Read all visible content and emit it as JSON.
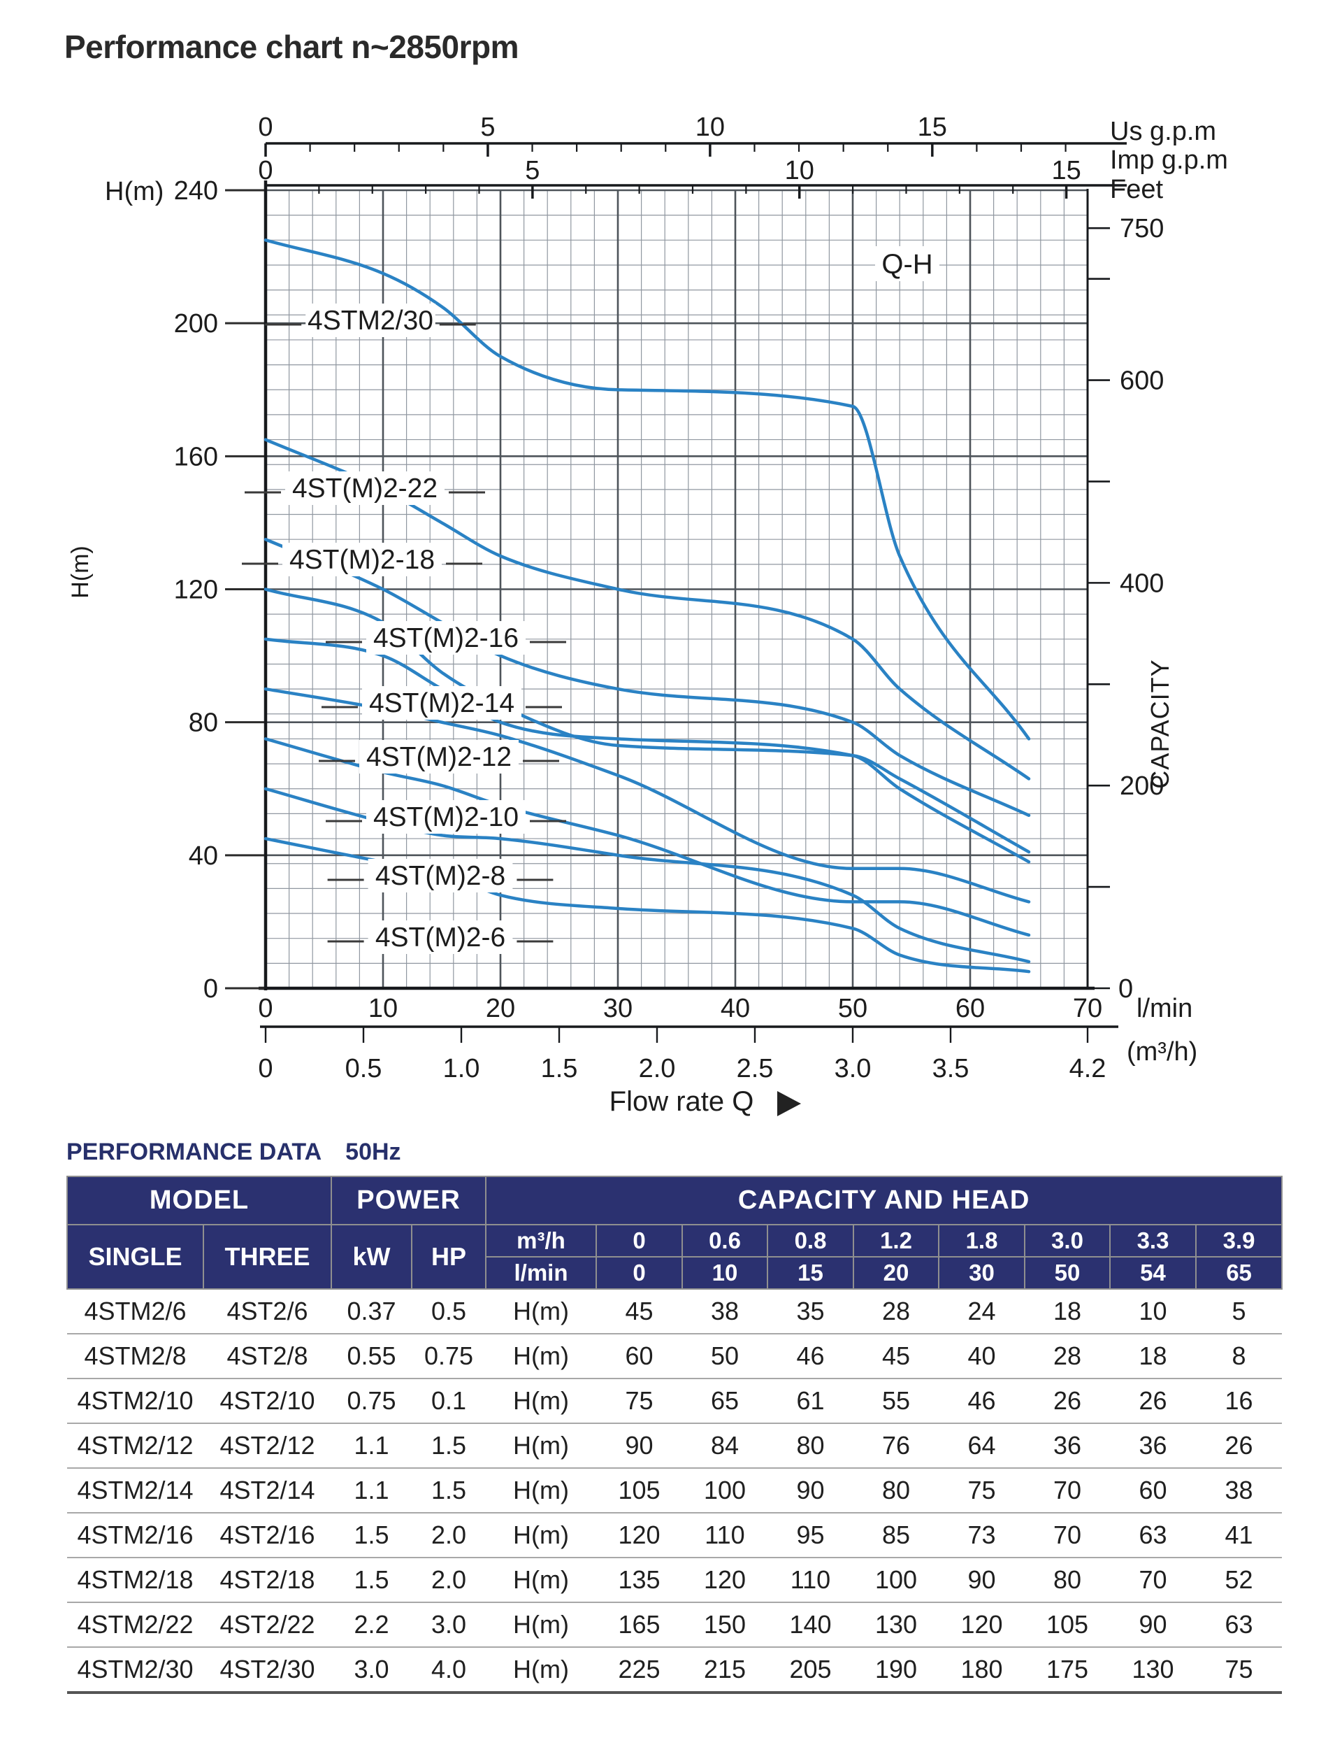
{
  "title": "Performance chart n~2850rpm",
  "chart_data": {
    "type": "line",
    "title": "Q-H",
    "x": [
      0,
      10,
      15,
      20,
      30,
      50,
      54,
      65
    ],
    "x_unit": "l/min",
    "y_unit": "H(m)",
    "series": [
      {
        "name": "4ST(M)2-6",
        "values": [
          45,
          38,
          35,
          28,
          24,
          18,
          10,
          5
        ],
        "label_xy": [
          630,
          1340
        ]
      },
      {
        "name": "4ST(M)2-8",
        "values": [
          60,
          50,
          46,
          45,
          40,
          28,
          18,
          8
        ],
        "label_xy": [
          630,
          1252
        ]
      },
      {
        "name": "4ST(M)2-10",
        "values": [
          75,
          65,
          61,
          55,
          46,
          26,
          26,
          16
        ],
        "label_xy": [
          638,
          1168
        ]
      },
      {
        "name": "4ST(M)2-12",
        "values": [
          90,
          84,
          80,
          76,
          64,
          36,
          36,
          26
        ],
        "label_xy": [
          628,
          1082
        ]
      },
      {
        "name": "4ST(M)2-14",
        "values": [
          105,
          100,
          90,
          80,
          75,
          70,
          60,
          38
        ],
        "label_xy": [
          632,
          1005
        ]
      },
      {
        "name": "4ST(M)2-16",
        "values": [
          120,
          110,
          95,
          85,
          73,
          70,
          63,
          41
        ],
        "label_xy": [
          638,
          912
        ]
      },
      {
        "name": "4ST(M)2-18",
        "values": [
          135,
          120,
          110,
          100,
          90,
          80,
          70,
          52
        ],
        "label_xy": [
          518,
          800
        ]
      },
      {
        "name": "4ST(M)2-22",
        "values": [
          165,
          150,
          140,
          130,
          120,
          105,
          90,
          63
        ],
        "label_xy": [
          522,
          698
        ]
      },
      {
        "name": "4STM2/30",
        "values": [
          225,
          215,
          205,
          190,
          180,
          175,
          130,
          75
        ],
        "label_xy": [
          530,
          458
        ]
      }
    ],
    "axes": {
      "left": {
        "label": "H(m)",
        "range": [
          0,
          240
        ],
        "ticks": [
          0,
          40,
          80,
          120,
          160,
          200,
          240
        ]
      },
      "right": {
        "label": "Feet",
        "axis_title": "CAPACITY",
        "ticks": [
          0,
          100,
          200,
          300,
          400,
          500,
          600,
          700,
          750
        ],
        "labeled": [
          0,
          200,
          400,
          600,
          750
        ],
        "feet_per_m": 3.2808
      },
      "top_us": {
        "label": "Us g.p.m",
        "labeled_ticks": [
          0,
          5,
          10,
          15
        ],
        "minor_max": 18,
        "lmin_per_unit": 3.785
      },
      "top_imp": {
        "label": "Imp g.p.m",
        "labeled_ticks": [
          0,
          5,
          10,
          15
        ],
        "minor_max": 15,
        "lmin_per_unit": 4.546
      },
      "bottom_lmin": {
        "label": "l/min",
        "range": [
          0,
          70
        ],
        "ticks": [
          0,
          10,
          20,
          30,
          40,
          50,
          60,
          70
        ]
      },
      "bottom_m3h": {
        "label": "(m³/h)",
        "range": [
          0,
          4.2
        ],
        "ticks": [
          "0",
          "0.5",
          "1.0",
          "1.5",
          "2.0",
          "2.5",
          "3.0",
          "3.5",
          "4.2"
        ]
      },
      "flow_label": "Flow rate Q",
      "qh_label": "Q-H"
    },
    "grid": {
      "v_minor_lmin": 2,
      "v_major_lmin": 10,
      "h_minor_divisions": 32,
      "h_major_m": 40
    },
    "colors": {
      "curve": "#2a82c4",
      "grid_minor": "#9097a0",
      "grid_major": "#4e545a",
      "axis": "#17191c",
      "text": "#1c1c1c"
    }
  },
  "table": {
    "heading": "PERFORMANCE DATA",
    "frequency": "50Hz",
    "header_bg": "#2b3170",
    "header_text": "#ffffff",
    "header": {
      "model": "MODEL",
      "power": "POWER",
      "capacity": "CAPACITY AND HEAD",
      "single": "SINGLE",
      "three": "THREE",
      "kw": "kW",
      "hp": "HP",
      "unit_row1_label": "m³/h",
      "unit_row1": [
        "0",
        "0.6",
        "0.8",
        "1.2",
        "1.8",
        "3.0",
        "3.3",
        "3.9"
      ],
      "unit_row2_label": "l/min",
      "unit_row2": [
        "0",
        "10",
        "15",
        "20",
        "30",
        "50",
        "54",
        "65"
      ]
    },
    "rows": [
      {
        "single": "4STM2/6",
        "three": "4ST2/6",
        "kw": "0.37",
        "hp": "0.5",
        "unit": "H(m)",
        "heads": [
          "45",
          "38",
          "35",
          "28",
          "24",
          "18",
          "10",
          "5"
        ]
      },
      {
        "single": "4STM2/8",
        "three": "4ST2/8",
        "kw": "0.55",
        "hp": "0.75",
        "unit": "H(m)",
        "heads": [
          "60",
          "50",
          "46",
          "45",
          "40",
          "28",
          "18",
          "8"
        ]
      },
      {
        "single": "4STM2/10",
        "three": "4ST2/10",
        "kw": "0.75",
        "hp": "0.1",
        "unit": "H(m)",
        "heads": [
          "75",
          "65",
          "61",
          "55",
          "46",
          "26",
          "26",
          "16"
        ]
      },
      {
        "single": "4STM2/12",
        "three": "4ST2/12",
        "kw": "1.1",
        "hp": "1.5",
        "unit": "H(m)",
        "heads": [
          "90",
          "84",
          "80",
          "76",
          "64",
          "36",
          "36",
          "26"
        ]
      },
      {
        "single": "4STM2/14",
        "three": "4ST2/14",
        "kw": "1.1",
        "hp": "1.5",
        "unit": "H(m)",
        "heads": [
          "105",
          "100",
          "90",
          "80",
          "75",
          "70",
          "60",
          "38"
        ]
      },
      {
        "single": "4STM2/16",
        "three": "4ST2/16",
        "kw": "1.5",
        "hp": "2.0",
        "unit": "H(m)",
        "heads": [
          "120",
          "110",
          "95",
          "85",
          "73",
          "70",
          "63",
          "41"
        ]
      },
      {
        "single": "4STM2/18",
        "three": "4ST2/18",
        "kw": "1.5",
        "hp": "2.0",
        "unit": "H(m)",
        "heads": [
          "135",
          "120",
          "110",
          "100",
          "90",
          "80",
          "70",
          "52"
        ]
      },
      {
        "single": "4STM2/22",
        "three": "4ST2/22",
        "kw": "2.2",
        "hp": "3.0",
        "unit": "H(m)",
        "heads": [
          "165",
          "150",
          "140",
          "130",
          "120",
          "105",
          "90",
          "63"
        ]
      },
      {
        "single": "4STM2/30",
        "three": "4ST2/30",
        "kw": "3.0",
        "hp": "4.0",
        "unit": "H(m)",
        "heads": [
          "225",
          "215",
          "205",
          "190",
          "180",
          "175",
          "130",
          "75"
        ]
      }
    ]
  }
}
